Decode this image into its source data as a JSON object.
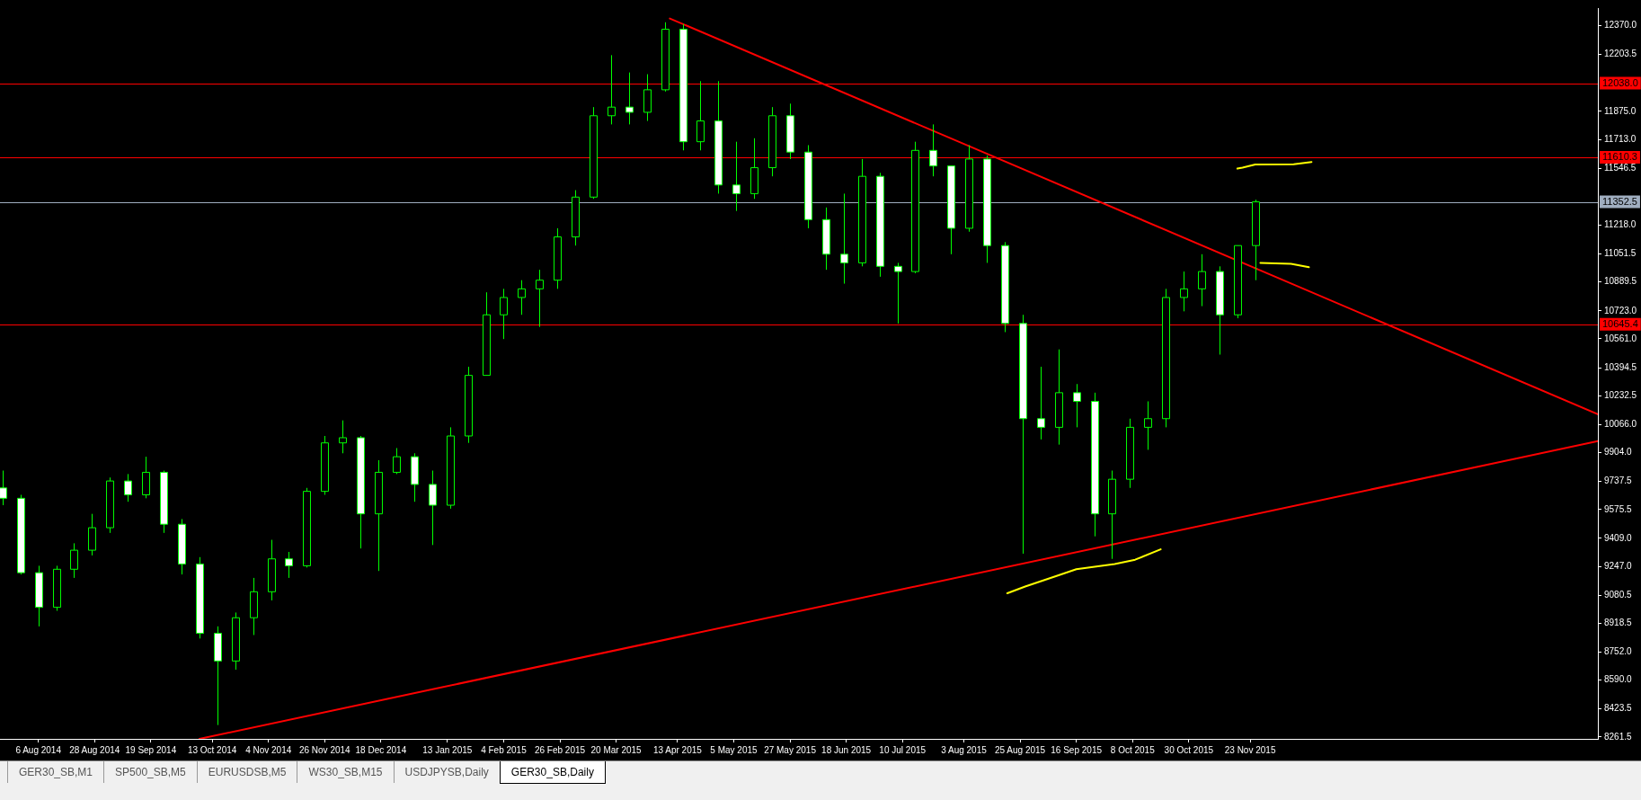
{
  "chart_data": {
    "type": "candlestick",
    "color": "#00ff00",
    "colors": [
      "#ffffff",
      "#ffffff",
      "#ffffff",
      "#000000",
      "#000000",
      "#000000",
      "#000000",
      "#ffffff",
      "#000000",
      "#ffffff",
      "#ffffff",
      "#ffffff",
      "#ffffff",
      "#000000",
      "#000000",
      "#000000",
      "#ffffff",
      "#000000",
      "#000000",
      "#000000",
      "#ffffff",
      "#000000",
      "#000000",
      "#ffffff",
      "#ffffff",
      "#000000",
      "#000000",
      "#000000",
      "#000000",
      "#000000",
      "#000000",
      "#000000",
      "#000000",
      "#000000",
      "#000000",
      "#ffffff",
      "#000000",
      "#000000",
      "#ffffff",
      "#000000",
      "#ffffff",
      "#ffffff",
      "#000000",
      "#000000",
      "#ffffff",
      "#ffffff",
      "#ffffff",
      "#ffffff",
      "#000000",
      "#ffffff",
      "#ffffff",
      "#000000",
      "#ffffff",
      "#ffffff",
      "#000000",
      "#ffffff",
      "#ffffff",
      "#ffffff",
      "#ffffff",
      "#000000",
      "#ffffff",
      "#ffffff",
      "#000000",
      "#000000",
      "#000000",
      "#000000",
      "#000000",
      "#000000",
      "#ffffff",
      "#000000",
      "#000000"
    ],
    "x": [
      "2014-07-23",
      "2014-07-30",
      "2014-08-06",
      "2014-08-13",
      "2014-08-20",
      "2014-08-27",
      "2014-09-03",
      "2014-09-10",
      "2014-09-17",
      "2014-09-24",
      "2014-10-01",
      "2014-10-08",
      "2014-10-15",
      "2014-10-22",
      "2014-10-29",
      "2014-11-05",
      "2014-11-12",
      "2014-11-19",
      "2014-11-26",
      "2014-12-03",
      "2014-12-10",
      "2014-12-17",
      "2014-12-24",
      "2014-12-31",
      "2015-01-07",
      "2015-01-14",
      "2015-01-21",
      "2015-01-28",
      "2015-02-04",
      "2015-02-11",
      "2015-02-18",
      "2015-02-25",
      "2015-03-04",
      "2015-03-11",
      "2015-03-18",
      "2015-03-25",
      "2015-04-01",
      "2015-04-08",
      "2015-04-15",
      "2015-04-22",
      "2015-04-29",
      "2015-05-06",
      "2015-05-13",
      "2015-05-20",
      "2015-05-27",
      "2015-06-03",
      "2015-06-10",
      "2015-06-17",
      "2015-06-24",
      "2015-07-01",
      "2015-07-08",
      "2015-07-15",
      "2015-07-22",
      "2015-07-29",
      "2015-08-05",
      "2015-08-12",
      "2015-08-19",
      "2015-08-26",
      "2015-09-02",
      "2015-09-09",
      "2015-09-16",
      "2015-09-23",
      "2015-09-30",
      "2015-10-07",
      "2015-10-14",
      "2015-10-21",
      "2015-10-28",
      "2015-11-04",
      "2015-11-11",
      "2015-11-18",
      "2015-11-25"
    ],
    "ohlc": [
      [
        9700,
        9800,
        9600,
        9640
      ],
      [
        9640,
        9660,
        9200,
        9210
      ],
      [
        9210,
        9250,
        8900,
        9010
      ],
      [
        9010,
        9250,
        8990,
        9230
      ],
      [
        9230,
        9380,
        9180,
        9340
      ],
      [
        9340,
        9550,
        9310,
        9470
      ],
      [
        9470,
        9760,
        9440,
        9740
      ],
      [
        9740,
        9780,
        9620,
        9660
      ],
      [
        9660,
        9880,
        9640,
        9790
      ],
      [
        9790,
        9800,
        9440,
        9490
      ],
      [
        9490,
        9520,
        9200,
        9260
      ],
      [
        9260,
        9300,
        8830,
        8860
      ],
      [
        8860,
        8900,
        8330,
        8700
      ],
      [
        8700,
        8980,
        8650,
        8950
      ],
      [
        8950,
        9180,
        8850,
        9100
      ],
      [
        9100,
        9400,
        9050,
        9290
      ],
      [
        9290,
        9330,
        9180,
        9250
      ],
      [
        9250,
        9700,
        9240,
        9680
      ],
      [
        9680,
        10000,
        9660,
        9960
      ],
      [
        9960,
        10090,
        9900,
        9990
      ],
      [
        9990,
        10000,
        9350,
        9550
      ],
      [
        9550,
        9860,
        9220,
        9790
      ],
      [
        9790,
        9930,
        9780,
        9880
      ],
      [
        9880,
        9900,
        9620,
        9720
      ],
      [
        9720,
        9800,
        9370,
        9600
      ],
      [
        9600,
        10050,
        9580,
        10000
      ],
      [
        10000,
        10400,
        9960,
        10350
      ],
      [
        10350,
        10830,
        10350,
        10700
      ],
      [
        10700,
        10850,
        10560,
        10800
      ],
      [
        10800,
        10900,
        10700,
        10850
      ],
      [
        10850,
        10960,
        10630,
        10900
      ],
      [
        10900,
        11200,
        10850,
        11150
      ],
      [
        11150,
        11420,
        11100,
        11380
      ],
      [
        11380,
        11900,
        11370,
        11850
      ],
      [
        11850,
        12200,
        11800,
        11900
      ],
      [
        11900,
        12100,
        11800,
        11870
      ],
      [
        11870,
        12090,
        11820,
        12000
      ],
      [
        12000,
        12390,
        11990,
        12350
      ],
      [
        12350,
        12380,
        11650,
        11700
      ],
      [
        11700,
        12050,
        11650,
        11820
      ],
      [
        11820,
        12050,
        11400,
        11450
      ],
      [
        11450,
        11700,
        11300,
        11400
      ],
      [
        11400,
        11720,
        11370,
        11550
      ],
      [
        11550,
        11900,
        11500,
        11850
      ],
      [
        11850,
        11920,
        11600,
        11640
      ],
      [
        11640,
        11680,
        11200,
        11250
      ],
      [
        11250,
        11320,
        10960,
        11050
      ],
      [
        11050,
        11400,
        10880,
        11000
      ],
      [
        11000,
        11600,
        10980,
        11500
      ],
      [
        11500,
        11520,
        10920,
        10980
      ],
      [
        10980,
        11000,
        10650,
        10950
      ],
      [
        10950,
        11700,
        10940,
        11650
      ],
      [
        11650,
        11800,
        11500,
        11560
      ],
      [
        11560,
        11560,
        11050,
        11200
      ],
      [
        11200,
        11680,
        11180,
        11600
      ],
      [
        11600,
        11620,
        11000,
        11100
      ],
      [
        11100,
        11120,
        10600,
        10650
      ],
      [
        10650,
        10700,
        9320,
        10100
      ],
      [
        10100,
        10400,
        9980,
        10050
      ],
      [
        10050,
        10500,
        9950,
        10250
      ],
      [
        10250,
        10300,
        10050,
        10200
      ],
      [
        10200,
        10250,
        9420,
        9550
      ],
      [
        9550,
        9800,
        9290,
        9750
      ],
      [
        9750,
        10100,
        9700,
        10050
      ],
      [
        10050,
        10200,
        9920,
        10100
      ],
      [
        10100,
        10850,
        10050,
        10800
      ],
      [
        10800,
        10950,
        10720,
        10850
      ],
      [
        10850,
        11050,
        10750,
        10950
      ],
      [
        10950,
        10980,
        10470,
        10700
      ],
      [
        10700,
        11100,
        10680,
        11100
      ],
      [
        11100,
        11365,
        10900,
        11352.5
      ]
    ],
    "series": [
      {
        "type": "line",
        "color": "#ff0000",
        "x": [
          "2015-04-10",
          "2016-04-07"
        ],
        "values": [
          12412,
          10125
        ]
      },
      {
        "type": "line",
        "color": "#ff0000",
        "x": [
          "2014-10-08",
          "2016-04-07"
        ],
        "values": [
          8250,
          9970
        ]
      },
      {
        "type": "line",
        "color": "#ffff00",
        "x": [
          "2015-08-20",
          "2015-08-27",
          "2015-09-08",
          "2015-09-16",
          "2015-10-01",
          "2015-10-09",
          "2015-10-19"
        ],
        "values": [
          9091,
          9130,
          9190,
          9230,
          9260,
          9285,
          9345
        ]
      },
      {
        "type": "line",
        "color": "#ffff00",
        "x": [
          "2015-11-18",
          "2015-11-20",
          "2015-11-25",
          "2015-12-10",
          "2015-12-17"
        ],
        "values": [
          11545,
          11550,
          11568,
          11570,
          11583
        ]
      },
      {
        "type": "line",
        "color": "#ffff00",
        "x": [
          "2015-11-27",
          "2015-12-09",
          "2015-12-16"
        ],
        "values": [
          11000,
          10995,
          10975
        ]
      }
    ],
    "xlim": [
      "2014-07-22",
      "2016-04-07"
    ],
    "xticks": [
      {
        "value": "2014-08-06",
        "label": "6 Aug 2014"
      },
      {
        "value": "2014-08-28",
        "label": "28 Aug 2014"
      },
      {
        "value": "2014-09-19",
        "label": "19 Sep 2014"
      },
      {
        "value": "2014-10-13",
        "label": "13 Oct 2014"
      },
      {
        "value": "2014-11-04",
        "label": "4 Nov 2014"
      },
      {
        "value": "2014-11-26",
        "label": "26 Nov 2014"
      },
      {
        "value": "2014-12-18",
        "label": "18 Dec 2014"
      },
      {
        "value": "2015-01-13",
        "label": "13 Jan 2015"
      },
      {
        "value": "2015-02-04",
        "label": "4 Feb 2015"
      },
      {
        "value": "2015-02-26",
        "label": "26 Feb 2015"
      },
      {
        "value": "2015-03-20",
        "label": "20 Mar 2015"
      },
      {
        "value": "2015-04-13",
        "label": "13 Apr 2015"
      },
      {
        "value": "2015-05-05",
        "label": "5 May 2015"
      },
      {
        "value": "2015-05-27",
        "label": "27 May 2015"
      },
      {
        "value": "2015-06-18",
        "label": "18 Jun 2015"
      },
      {
        "value": "2015-07-10",
        "label": "10 Jul 2015"
      },
      {
        "value": "2015-08-03",
        "label": "3 Aug 2015"
      },
      {
        "value": "2015-08-25",
        "label": "25 Aug 2015"
      },
      {
        "value": "2015-09-16",
        "label": "16 Sep 2015"
      },
      {
        "value": "2015-10-08",
        "label": "8 Oct 2015"
      },
      {
        "value": "2015-10-30",
        "label": "30 Oct 2015"
      },
      {
        "value": "2015-11-23",
        "label": "23 Nov 2015"
      }
    ],
    "ylim": [
      8250,
      12472
    ],
    "yticks": [
      {
        "value": 12370,
        "label": "12370.0"
      },
      {
        "value": 12203.5,
        "label": "12203.5"
      },
      {
        "value": 11875,
        "label": "11875.0"
      },
      {
        "value": 11713,
        "label": "11713.0"
      },
      {
        "value": 11546.5,
        "label": "11546.5"
      },
      {
        "value": 11218,
        "label": "11218.0"
      },
      {
        "value": 11051.5,
        "label": "11051.5"
      },
      {
        "value": 10889.5,
        "label": "10889.5"
      },
      {
        "value": 10723,
        "label": "10723.0"
      },
      {
        "value": 10561,
        "label": "10561.0"
      },
      {
        "value": 10394.5,
        "label": "10394.5"
      },
      {
        "value": 10232.5,
        "label": "10232.5"
      },
      {
        "value": 10066,
        "label": "10066.0"
      },
      {
        "value": 9904,
        "label": "9904.0"
      },
      {
        "value": 9737.5,
        "label": "9737.5"
      },
      {
        "value": 9575.5,
        "label": "9575.5"
      },
      {
        "value": 9409,
        "label": "9409.0"
      },
      {
        "value": 9247,
        "label": "9247.0"
      },
      {
        "value": 9080.5,
        "label": "9080.5"
      },
      {
        "value": 8918.5,
        "label": "8918.5"
      },
      {
        "value": 8752,
        "label": "8752.0"
      },
      {
        "value": 8590,
        "label": "8590.0"
      },
      {
        "value": 8423.5,
        "label": "8423.5"
      },
      {
        "value": 8261.5,
        "label": "8261.5"
      }
    ],
    "ref_lines": [
      {
        "axis": "y",
        "value": 12038.0,
        "label": "12038.0",
        "color": "#ff0000"
      },
      {
        "axis": "y",
        "value": 11610.3,
        "label": "11610.3",
        "color": "#ff0000"
      },
      {
        "axis": "y",
        "value": 11352.5,
        "label": "11352.5",
        "color": "#a0aec0"
      },
      {
        "axis": "y",
        "value": 10645.4,
        "label": "10645.4",
        "color": "#ff0000"
      }
    ],
    "annotations": [
      "GER30_SB,M1",
      "SP500_SB,M5",
      "EURUSDSB,M5",
      "WS30_SB,M15",
      "USDJPYSB,Daily",
      "GER30_SB,Daily"
    ]
  }
}
